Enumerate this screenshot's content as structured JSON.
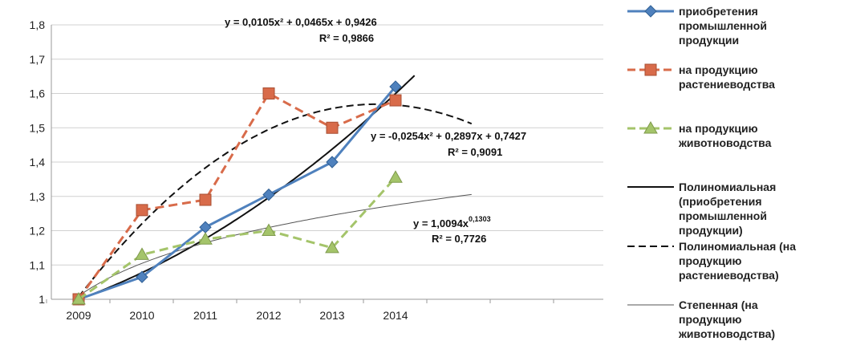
{
  "chart_data": {
    "type": "line",
    "categories": [
      "2009",
      "2010",
      "2011",
      "2012",
      "2013",
      "2014"
    ],
    "ylim": [
      1,
      1.8
    ],
    "yticks": [
      "1",
      "1,1",
      "1,2",
      "1,3",
      "1,4",
      "1,5",
      "1,6",
      "1,7",
      "1,8"
    ],
    "grid": "horizontal",
    "legend_position": "right",
    "series": [
      {
        "name": "приобретения промышленной продукции",
        "values": [
          1.0,
          1.065,
          1.21,
          1.305,
          1.4,
          1.62
        ],
        "color": "#4F81BD",
        "marker": "diamond"
      },
      {
        "name": "на продукцию растениеводства",
        "values": [
          1.0,
          1.26,
          1.29,
          1.6,
          1.5,
          1.58
        ],
        "color": "#D86B4A",
        "marker": "square",
        "dash": true
      },
      {
        "name": "на продукцию животноводства",
        "values": [
          1.0,
          1.13,
          1.175,
          1.2,
          1.15,
          1.355
        ],
        "color": "#A4C46A",
        "marker": "triangle",
        "dash": true
      }
    ],
    "trendlines": [
      {
        "name": "Полиномиальная (приобретения промышленной продукции)",
        "kind": "poly2",
        "coef": [
          0.0105,
          0.0465,
          0.9426
        ],
        "x_end": 6.3,
        "color": "#111111",
        "style": "solid"
      },
      {
        "name": "Полиномиальная (на продукцию растениеводства)",
        "kind": "poly2",
        "coef": [
          -0.0254,
          0.2897,
          0.7427
        ],
        "x_end": 7.2,
        "color": "#111111",
        "style": "dashed"
      },
      {
        "name": "Степенная (на продукцию животноводства)",
        "kind": "power",
        "coef": [
          1.0094,
          0.1303
        ],
        "x_end": 7.2,
        "color": "#555555",
        "style": "thin"
      }
    ],
    "annotations": [
      {
        "equation": "y = 0,0105x² + 0,0465x + 0,9426",
        "r2": "R² = 0,9866"
      },
      {
        "equation": "y = -0,0254x² + 0,2897x + 0,7427",
        "r2": "R² = 0,9091"
      },
      {
        "equation": "y = 1,0094x",
        "exponent": "0,1303",
        "r2": "R² = 0,7726"
      }
    ]
  }
}
